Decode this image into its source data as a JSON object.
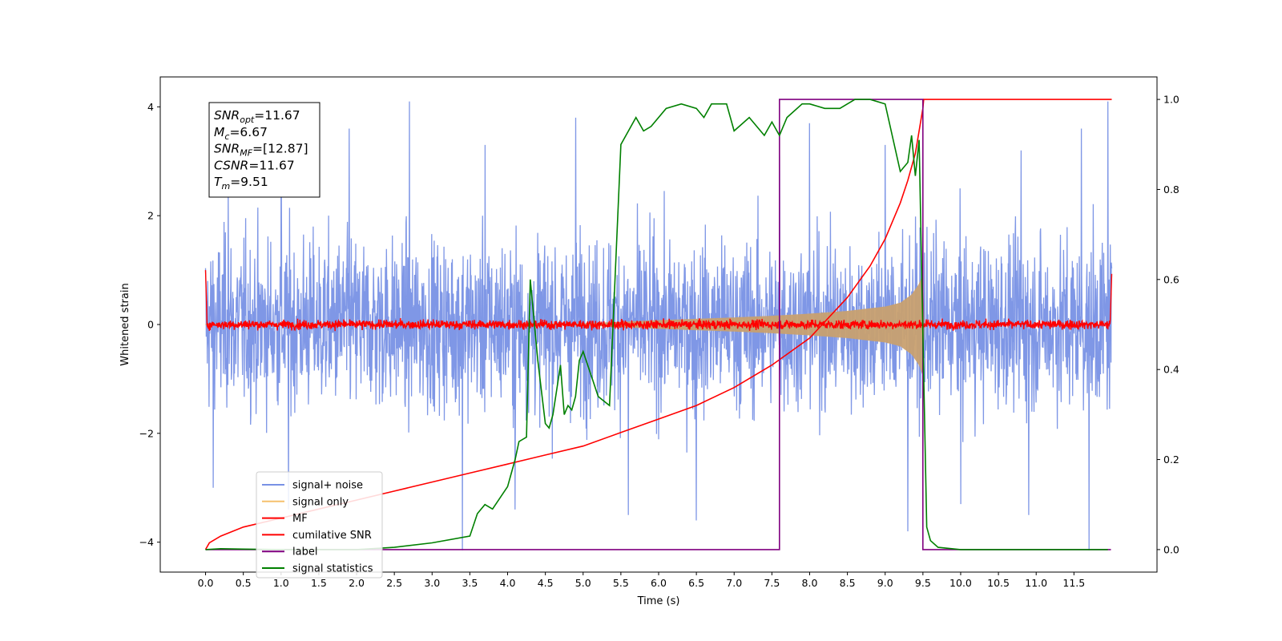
{
  "chart_data": {
    "type": "line",
    "xlabel": "Time (s)",
    "ylabel": "Whitened strain",
    "xlim": [
      -0.6,
      12.6
    ],
    "ylim": [
      -4.55,
      4.55
    ],
    "y2lim": [
      -0.05,
      1.05
    ],
    "xticks": [
      0.0,
      0.5,
      1.0,
      1.5,
      2.0,
      2.5,
      3.0,
      3.5,
      4.0,
      4.5,
      5.0,
      5.5,
      6.0,
      6.5,
      7.0,
      7.5,
      8.0,
      8.5,
      9.0,
      9.5,
      10.0,
      10.5,
      11.0,
      11.5
    ],
    "xtick_labels": [
      "0.0",
      "0.5",
      "1.0",
      "1.5",
      "2.0",
      "2.5",
      "3.0",
      "3.5",
      "4.0",
      "4.5",
      "5.0",
      "5.5",
      "6.0",
      "6.5",
      "7.0",
      "7.5",
      "8.0",
      "8.5",
      "9.0",
      "9.5",
      "10.0",
      "10.5",
      "11.0",
      "11.5"
    ],
    "yticks": [
      -4,
      -2,
      0,
      2,
      4
    ],
    "ytick_labels": [
      "−4",
      "−2",
      "0",
      "2",
      "4"
    ],
    "y2ticks": [
      0.0,
      0.2,
      0.4,
      0.6,
      0.8,
      1.0
    ],
    "y2tick_labels": [
      "0.0",
      "0.2",
      "0.4",
      "0.6",
      "0.8",
      "1.0"
    ],
    "legend_position": "lower-left",
    "grid": false,
    "annotation": [
      {
        "main": "SNR",
        "sub": "opt",
        "value": "=11.67"
      },
      {
        "main": "M",
        "sub": "c",
        "value": "=6.67"
      },
      {
        "main": "SNR",
        "sub": "MF",
        "value": "=[12.87]"
      },
      {
        "main": "CSNR",
        "sub": "",
        "value": "=11.67"
      },
      {
        "main": "T",
        "sub": "m",
        "value": "=9.51"
      }
    ],
    "series": [
      {
        "name": "signal+ noise",
        "axis": "left",
        "color": "#7891e5",
        "x_range": [
          0.0,
          12.0
        ],
        "noise_amplitude": 1.1,
        "peak_max": [
          [
            0.3,
            2.5
          ],
          [
            1.0,
            3.5
          ],
          [
            1.9,
            3.6
          ],
          [
            2.7,
            4.1
          ],
          [
            3.7,
            3.3
          ],
          [
            4.9,
            3.8
          ],
          [
            5.6,
            3.3
          ],
          [
            6.5,
            3.3
          ],
          [
            7.6,
            3.1
          ],
          [
            8.0,
            3.7
          ],
          [
            9.0,
            3.3
          ],
          [
            10.8,
            3.2
          ],
          [
            11.6,
            3.6
          ],
          [
            11.95,
            4.1
          ]
        ],
        "peak_min": [
          [
            0.1,
            -3.0
          ],
          [
            1.1,
            -3.4
          ],
          [
            3.4,
            -4.15
          ],
          [
            4.1,
            -3.4
          ],
          [
            5.6,
            -3.5
          ],
          [
            6.5,
            -3.6
          ],
          [
            9.3,
            -3.8
          ],
          [
            10.0,
            -3.3
          ],
          [
            10.9,
            -3.5
          ],
          [
            11.7,
            -4.15
          ]
        ]
      },
      {
        "name": "signal only",
        "axis": "left",
        "color": "#f5c06d",
        "envelope": {
          "t": [
            0.0,
            5.0,
            6.0,
            7.0,
            7.5,
            8.0,
            8.5,
            9.0,
            9.2,
            9.35,
            9.45,
            9.5,
            9.52,
            12.0
          ],
          "amp": [
            0.01,
            0.02,
            0.08,
            0.13,
            0.16,
            0.2,
            0.25,
            0.33,
            0.4,
            0.55,
            0.75,
            0.95,
            0.0,
            0.0
          ]
        }
      },
      {
        "name": "MF",
        "axis": "left",
        "color": "#ff0000",
        "x_range": [
          0.0,
          12.0
        ],
        "noise_amplitude": 0.06,
        "endpoints": [
          [
            0.0,
            1.0
          ],
          [
            12.0,
            0.93
          ]
        ]
      },
      {
        "name": "cumilative SNR",
        "axis": "right",
        "color": "#ff0000",
        "x": [
          0.0,
          0.05,
          0.2,
          0.5,
          1.0,
          1.5,
          2.0,
          2.5,
          3.0,
          3.5,
          4.0,
          4.5,
          5.0,
          5.5,
          6.0,
          6.5,
          7.0,
          7.5,
          8.0,
          8.5,
          8.8,
          9.0,
          9.2,
          9.3,
          9.4,
          9.45,
          9.5,
          9.51,
          12.0
        ],
        "y": [
          0.0,
          0.015,
          0.03,
          0.05,
          0.07,
          0.09,
          0.11,
          0.13,
          0.15,
          0.17,
          0.19,
          0.21,
          0.23,
          0.26,
          0.29,
          0.32,
          0.36,
          0.41,
          0.47,
          0.56,
          0.63,
          0.69,
          0.77,
          0.82,
          0.88,
          0.93,
          0.98,
          1.0,
          1.0
        ]
      },
      {
        "name": "label",
        "axis": "right",
        "color": "#800080",
        "x": [
          0.0,
          7.6,
          7.6,
          9.5,
          9.5,
          11.99
        ],
        "y": [
          0.0,
          0.0,
          1.0,
          1.0,
          0.0,
          0.0
        ]
      },
      {
        "name": "signal statistics",
        "axis": "right",
        "color": "#008000",
        "x": [
          0.0,
          0.2,
          0.5,
          1.0,
          1.5,
          2.0,
          2.5,
          3.0,
          3.5,
          3.6,
          3.7,
          3.8,
          4.0,
          4.1,
          4.15,
          4.25,
          4.3,
          4.4,
          4.5,
          4.55,
          4.6,
          4.7,
          4.75,
          4.8,
          4.85,
          4.9,
          4.95,
          5.0,
          5.1,
          5.2,
          5.35,
          5.5,
          5.7,
          5.8,
          5.9,
          6.1,
          6.3,
          6.5,
          6.6,
          6.7,
          6.9,
          7.0,
          7.2,
          7.4,
          7.5,
          7.6,
          7.7,
          7.9,
          8.0,
          8.2,
          8.4,
          8.5,
          8.6,
          8.8,
          9.0,
          9.2,
          9.3,
          9.35,
          9.4,
          9.45,
          9.5,
          9.55,
          9.6,
          9.7,
          10.0,
          11.0,
          11.95
        ],
        "y": [
          0.0,
          0.002,
          0.001,
          0.0,
          0.0,
          0.0,
          0.005,
          0.015,
          0.03,
          0.08,
          0.1,
          0.09,
          0.14,
          0.2,
          0.24,
          0.25,
          0.6,
          0.42,
          0.28,
          0.27,
          0.3,
          0.41,
          0.3,
          0.32,
          0.31,
          0.34,
          0.42,
          0.44,
          0.39,
          0.34,
          0.32,
          0.9,
          0.96,
          0.93,
          0.94,
          0.98,
          0.99,
          0.98,
          0.96,
          0.99,
          0.99,
          0.93,
          0.96,
          0.92,
          0.95,
          0.92,
          0.96,
          0.99,
          0.99,
          0.98,
          0.98,
          0.99,
          1.0,
          1.0,
          0.99,
          0.84,
          0.86,
          0.92,
          0.83,
          0.91,
          0.48,
          0.05,
          0.02,
          0.005,
          0.0,
          0.0,
          0.0
        ]
      }
    ]
  }
}
